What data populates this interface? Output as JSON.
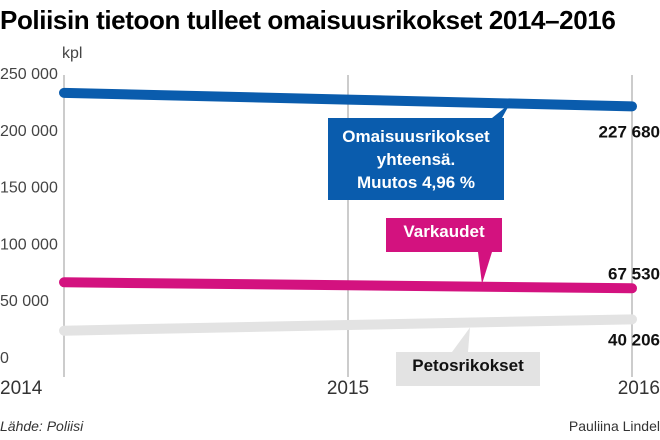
{
  "title": "Poliisin tietoon tulleet omaisuusrikokset 2014–2016",
  "footer": {
    "source": "Lähde: Poliisi",
    "author": "Pauliina Lindel"
  },
  "chart_data": {
    "type": "line",
    "ylabel": "kpl",
    "ylim": [
      0,
      250000
    ],
    "yticks": [
      0,
      50000,
      100000,
      150000,
      200000,
      250000
    ],
    "ytick_labels": [
      "0",
      "50 000",
      "100 000",
      "150 000",
      "200 000",
      "250 000"
    ],
    "x": [
      2014,
      2015,
      2016
    ],
    "xlabels": [
      "2014",
      "2015",
      "2016"
    ],
    "grid": "vertical",
    "series": [
      {
        "name": "Omaisuusrikokset yhteensä",
        "color": "#0a5cad",
        "values": [
          239600,
          233600,
          227680
        ],
        "end_label": "227 680",
        "callout": {
          "lines": [
            "Omaisuusrikokset",
            "yhteensä.",
            "Muutos 4,96 %"
          ],
          "bg": "#0a5cad",
          "fg": "#ffffff"
        }
      },
      {
        "name": "Varkaudet",
        "color": "#d3127f",
        "values": [
          72800,
          70200,
          67530
        ],
        "end_label": "67 530",
        "callout": {
          "lines": [
            "Varkaudet"
          ],
          "bg": "#d3127f",
          "fg": "#ffffff"
        }
      },
      {
        "name": "Petosrikokset",
        "color": "#e3e3e3",
        "values": [
          30200,
          35200,
          40206
        ],
        "end_label": "40 206",
        "callout": {
          "lines": [
            "Petosrikokset"
          ],
          "bg": "#e3e3e3",
          "fg": "#111111"
        }
      }
    ]
  }
}
